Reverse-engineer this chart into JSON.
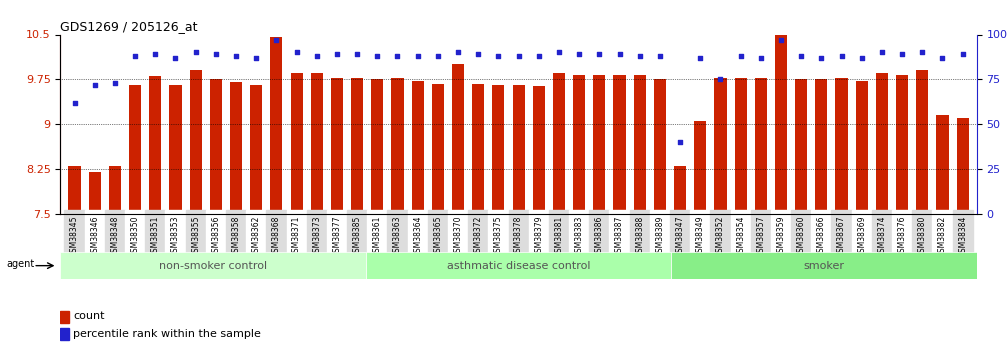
{
  "title": "GDS1269 / 205126_at",
  "ylim": [
    7.5,
    10.5
  ],
  "yticks": [
    7.5,
    8.25,
    9,
    9.75,
    10.5
  ],
  "ytick_labels": [
    "7.5",
    "8.25",
    "9",
    "9.75",
    "10.5"
  ],
  "right_yticks": [
    0,
    25,
    50,
    75,
    100
  ],
  "right_ytick_labels": [
    "0",
    "25",
    "50",
    "75",
    "100%"
  ],
  "bar_color": "#cc2200",
  "dot_color": "#2222cc",
  "bg_color": "#ffffff",
  "grid_color": "#000000",
  "samples": [
    "GSM38345",
    "GSM38346",
    "GSM38348",
    "GSM38350",
    "GSM38351",
    "GSM38353",
    "GSM38355",
    "GSM38356",
    "GSM38358",
    "GSM38362",
    "GSM38368",
    "GSM38371",
    "GSM38373",
    "GSM38377",
    "GSM38385",
    "GSM38361",
    "GSM38363",
    "GSM38364",
    "GSM38365",
    "GSM38370",
    "GSM38372",
    "GSM38375",
    "GSM38378",
    "GSM38379",
    "GSM38381",
    "GSM38383",
    "GSM38386",
    "GSM38387",
    "GSM38388",
    "GSM38389",
    "GSM38347",
    "GSM38349",
    "GSM38352",
    "GSM38354",
    "GSM38357",
    "GSM38359",
    "GSM38360",
    "GSM38366",
    "GSM38367",
    "GSM38369",
    "GSM38374",
    "GSM38376",
    "GSM38380",
    "GSM38382",
    "GSM38384"
  ],
  "counts": [
    8.3,
    8.2,
    8.3,
    9.65,
    9.8,
    9.65,
    9.9,
    9.75,
    9.7,
    9.65,
    10.45,
    9.85,
    9.85,
    9.78,
    9.78,
    9.75,
    9.78,
    9.72,
    9.68,
    10.0,
    9.68,
    9.66,
    9.65,
    9.64,
    9.85,
    9.83,
    9.83,
    9.83,
    9.83,
    9.75,
    8.3,
    9.05,
    9.78,
    9.78,
    9.78,
    10.5,
    9.75,
    9.75,
    9.78,
    9.72,
    9.85,
    9.83,
    9.9,
    9.15,
    9.1
  ],
  "percentiles": [
    62,
    72,
    73,
    88,
    89,
    87,
    90,
    89,
    88,
    87,
    97,
    90,
    88,
    89,
    89,
    88,
    88,
    88,
    88,
    90,
    89,
    88,
    88,
    88,
    90,
    89,
    89,
    89,
    88,
    88,
    40,
    87,
    75,
    88,
    87,
    97,
    88,
    87,
    88,
    87,
    90,
    89,
    90,
    87,
    89
  ],
  "groups": [
    {
      "label": "non-smoker control",
      "start": 0,
      "end": 15,
      "color": "#ccffcc"
    },
    {
      "label": "asthmatic disease control",
      "start": 15,
      "end": 30,
      "color": "#aaffaa"
    },
    {
      "label": "smoker",
      "start": 30,
      "end": 45,
      "color": "#88ee88"
    }
  ]
}
